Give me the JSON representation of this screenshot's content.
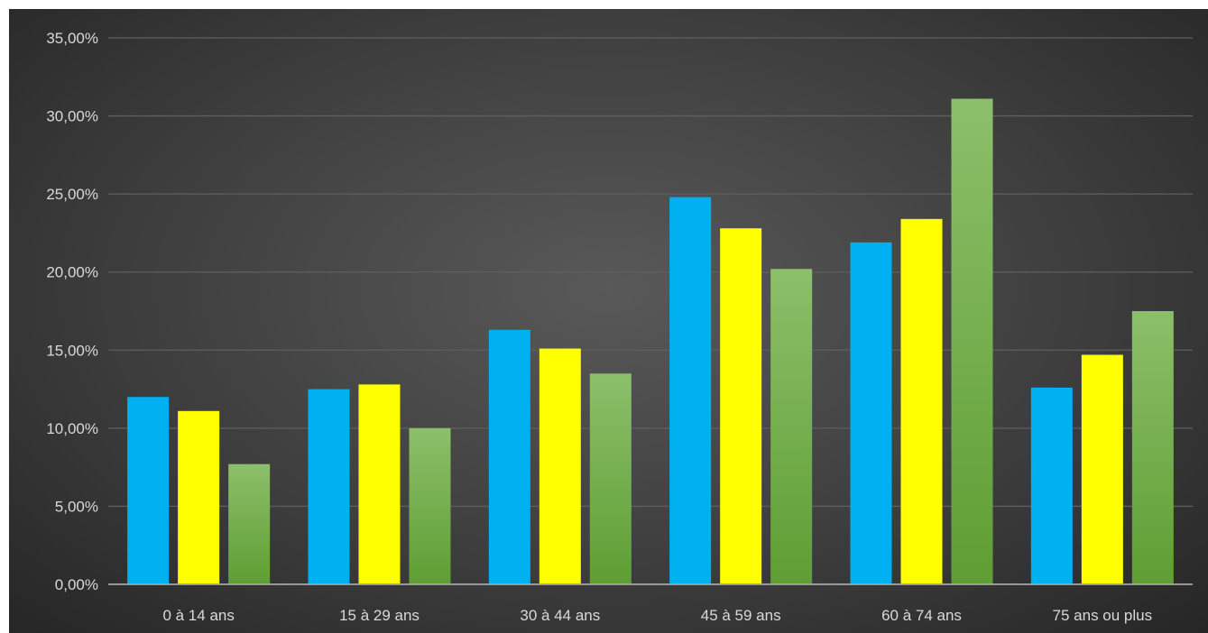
{
  "chart_data": {
    "type": "bar",
    "title": "",
    "xlabel": "",
    "ylabel": "",
    "categories": [
      "0 à 14 ans",
      "15 à 29 ans",
      "30 à 44 ans",
      "45 à 59 ans",
      "60 à 74 ans",
      "75 ans ou plus"
    ],
    "ylim": [
      0,
      35
    ],
    "y_ticks": [
      0,
      5,
      10,
      15,
      20,
      25,
      30,
      35
    ],
    "y_tick_labels": [
      "0,00%",
      "5,00%",
      "10,00%",
      "15,00%",
      "20,00%",
      "25,00%",
      "30,00%",
      "35,00%"
    ],
    "grid": true,
    "legend": "none",
    "series": [
      {
        "color": "#00b0f0",
        "values": [
          12.0,
          12.5,
          16.3,
          24.8,
          21.9,
          12.6
        ]
      },
      {
        "color": "#ffff00",
        "values": [
          11.1,
          12.8,
          15.1,
          22.8,
          23.4,
          14.7
        ]
      },
      {
        "color": "#70ad47",
        "color_light": "#8cbf6a",
        "gradient": true,
        "values": [
          7.7,
          10.0,
          13.5,
          20.2,
          31.1,
          17.5
        ]
      }
    ]
  }
}
